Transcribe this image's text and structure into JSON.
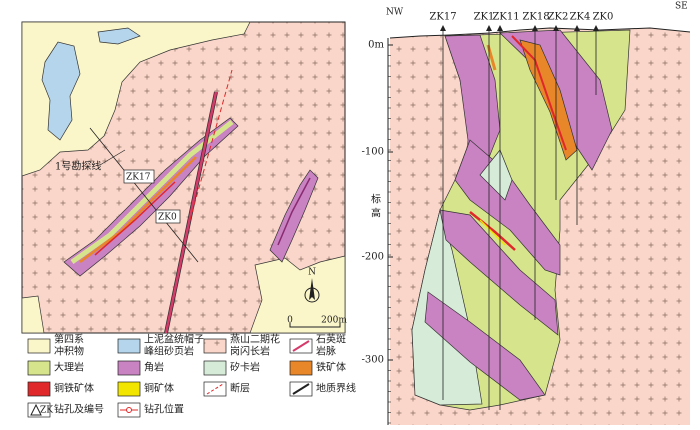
{
  "map": {
    "exploration_line": "1号勘探线",
    "zk17": "ZK17",
    "zk0": "ZK0",
    "north": "N",
    "scale_zero": "0",
    "scale_length": "200m"
  },
  "legend": {
    "items": [
      {
        "label": [
          "第四系",
          "冲积物"
        ]
      },
      {
        "label": [
          "上泥盆统帽子",
          "峰组砂页岩"
        ]
      },
      {
        "label": [
          "燕山二期花",
          "岗闪长岩"
        ]
      },
      {
        "label": [
          "石英斑",
          "岩脉"
        ]
      },
      {
        "label": [
          "大理岩"
        ]
      },
      {
        "label": [
          "角岩"
        ]
      },
      {
        "label": [
          "矽卡岩"
        ]
      },
      {
        "label": [
          "铁矿体"
        ]
      },
      {
        "label": [
          "铜铁矿体"
        ]
      },
      {
        "label": [
          "铜矿体"
        ]
      },
      {
        "label": [
          "断层"
        ]
      },
      {
        "label": [
          "地质界线"
        ]
      },
      {
        "label": [
          "钻孔及编号"
        ],
        "symbol": "ZK"
      },
      {
        "label": [
          "钻孔位置"
        ]
      }
    ]
  },
  "section": {
    "nw": "NW",
    "se": "SE",
    "drill_holes": [
      "ZK17",
      "ZK1",
      "ZK11",
      "ZK18",
      "ZK2",
      "ZK4",
      "ZK0"
    ],
    "elevation_labels": [
      "0m",
      "-100",
      "-200",
      "-300"
    ],
    "axis_title": [
      "标",
      "高"
    ]
  }
}
